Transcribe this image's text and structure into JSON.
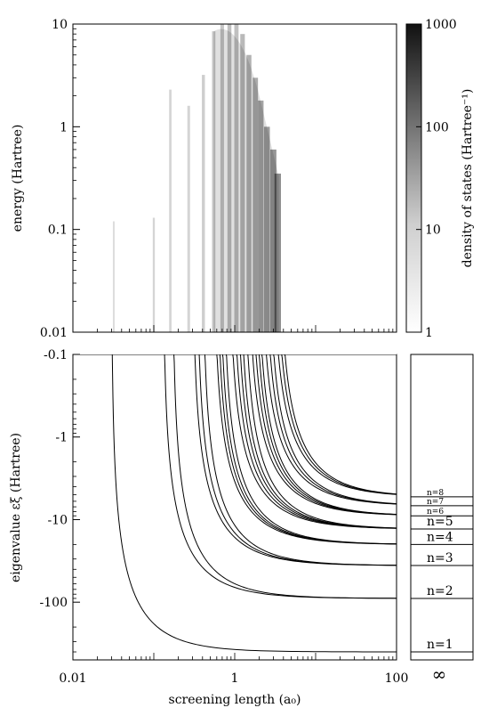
{
  "chart_data": [
    {
      "type": "heatmap",
      "panel": "top",
      "xscale": "log",
      "yscale": "log",
      "xlim": [
        0.01,
        100
      ],
      "ylim": [
        0.01,
        10
      ],
      "ylabel": "energy (Hartree)",
      "yticks": [
        "0.01",
        "0.1",
        "1",
        "10"
      ],
      "colorbar": {
        "label": "density of states (Hartree⁻¹)",
        "scale": "log",
        "range": [
          1,
          1000
        ],
        "ticks": [
          "1",
          "10",
          "100",
          "1000"
        ],
        "colormap": "white-to-black"
      },
      "bands": [
        {
          "x": 0.032,
          "ymax": 0.12,
          "intensity": 0.25
        },
        {
          "x": 0.1,
          "ymax": 0.13,
          "intensity": 0.3
        },
        {
          "x": 0.16,
          "ymax": 2.3,
          "intensity": 0.3
        },
        {
          "x": 0.27,
          "ymax": 1.6,
          "intensity": 0.3
        },
        {
          "x": 0.41,
          "ymax": 3.2,
          "intensity": 0.35
        },
        {
          "x": 0.55,
          "ymax": 8.5,
          "intensity": 0.4
        },
        {
          "x": 0.7,
          "ymax": 10,
          "intensity": 0.4
        },
        {
          "x": 0.86,
          "ymax": 10,
          "intensity": 0.45
        },
        {
          "x": 1.05,
          "ymax": 10,
          "intensity": 0.45
        },
        {
          "x": 1.25,
          "ymax": 8.0,
          "intensity": 0.5
        },
        {
          "x": 1.5,
          "ymax": 5.0,
          "intensity": 0.55
        },
        {
          "x": 1.8,
          "ymax": 3.0,
          "intensity": 0.6
        },
        {
          "x": 2.1,
          "ymax": 1.8,
          "intensity": 0.65
        },
        {
          "x": 2.5,
          "ymax": 1.0,
          "intensity": 0.7
        },
        {
          "x": 3.0,
          "ymax": 0.6,
          "intensity": 0.75
        },
        {
          "x": 3.4,
          "ymax": 0.35,
          "intensity": 0.8
        }
      ]
    },
    {
      "type": "line",
      "panel": "bottom",
      "xscale": "log",
      "yscale": "log",
      "xlim": [
        0.01,
        100
      ],
      "ylim": [
        -0.1,
        -500
      ],
      "xlabel": "screening length (a₀)",
      "ylabel": "eigenvalue εξ (Hartree)",
      "xticks": [
        "0.01",
        "1",
        "100"
      ],
      "yticks": [
        "-0.1",
        "-1",
        "-10",
        "-100"
      ],
      "series_description": "bound-state eigenvalues vs screening length; each curve diverges toward zero binding near its critical screening length and approaches the hydrogen level -0.5/n² (Hartree· scaled) asymptotically",
      "curves": [
        {
          "n": 1,
          "xcrit": 0.03,
          "asymptote": -400
        },
        {
          "n": 2,
          "xcrit": 0.13,
          "asymptote": -90
        },
        {
          "n": 2,
          "xcrit": 0.17,
          "asymptote": -90
        },
        {
          "n": 3,
          "xcrit": 0.3,
          "asymptote": -36
        },
        {
          "n": 3,
          "xcrit": 0.34,
          "asymptote": -36
        },
        {
          "n": 3,
          "xcrit": 0.4,
          "asymptote": -36
        },
        {
          "n": 4,
          "xcrit": 0.55,
          "asymptote": -20
        },
        {
          "n": 4,
          "xcrit": 0.6,
          "asymptote": -20
        },
        {
          "n": 4,
          "xcrit": 0.65,
          "asymptote": -20
        },
        {
          "n": 4,
          "xcrit": 0.72,
          "asymptote": -20
        },
        {
          "n": 5,
          "xcrit": 0.85,
          "asymptote": -13
        },
        {
          "n": 5,
          "xcrit": 0.95,
          "asymptote": -13
        },
        {
          "n": 5,
          "xcrit": 1.05,
          "asymptote": -13
        },
        {
          "n": 5,
          "xcrit": 1.15,
          "asymptote": -13
        },
        {
          "n": 5,
          "xcrit": 1.3,
          "asymptote": -13
        },
        {
          "n": 6,
          "xcrit": 1.45,
          "asymptote": -9
        },
        {
          "n": 6,
          "xcrit": 1.6,
          "asymptote": -9
        },
        {
          "n": 6,
          "xcrit": 1.75,
          "asymptote": -9
        },
        {
          "n": 6,
          "xcrit": 1.9,
          "asymptote": -9
        },
        {
          "n": 7,
          "xcrit": 2.1,
          "asymptote": -6.8
        },
        {
          "n": 7,
          "xcrit": 2.35,
          "asymptote": -6.8
        },
        {
          "n": 7,
          "xcrit": 2.6,
          "asymptote": -6.8
        },
        {
          "n": 8,
          "xcrit": 2.9,
          "asymptote": -5.3
        },
        {
          "n": 8,
          "xcrit": 3.2,
          "asymptote": -5.3
        },
        {
          "n": 8,
          "xcrit": 3.5,
          "asymptote": -5.3
        }
      ]
    },
    {
      "type": "line",
      "panel": "bottom-right",
      "xlabel": "∞",
      "levels": [
        {
          "label": "n=1",
          "value": -400
        },
        {
          "label": "n=2",
          "value": -90
        },
        {
          "label": "n=3",
          "value": -36
        },
        {
          "label": "n=4",
          "value": -20
        },
        {
          "label": "n=5",
          "value": -13
        },
        {
          "label": "n=6",
          "value": -9
        },
        {
          "label": "n=7",
          "value": -6.8
        },
        {
          "label": "n=8",
          "value": -5.3
        }
      ]
    }
  ]
}
